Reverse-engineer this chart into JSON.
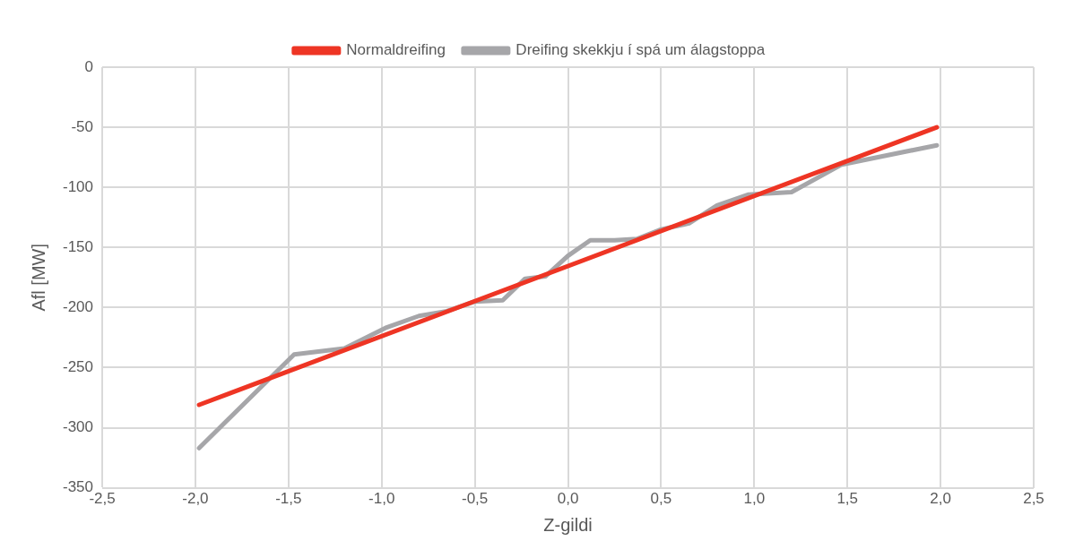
{
  "chart_data": {
    "type": "line",
    "xlabel": "Z-gildi",
    "ylabel": "Afl [MW]",
    "xlim": [
      -2.5,
      2.5
    ],
    "xticks": [
      {
        "value": -2.5,
        "label": "-2,5"
      },
      {
        "value": -2,
        "label": "-2,0"
      },
      {
        "value": -1.5,
        "label": "-1,5"
      },
      {
        "value": -1,
        "label": "-1,0"
      },
      {
        "value": -0.5,
        "label": "-0,5"
      },
      {
        "value": 0,
        "label": "0,0"
      },
      {
        "value": 0.5,
        "label": "0,5"
      },
      {
        "value": 1,
        "label": "1,0"
      },
      {
        "value": 1.5,
        "label": "1,5"
      },
      {
        "value": 2,
        "label": "2,0"
      },
      {
        "value": 2.5,
        "label": "2,5"
      }
    ],
    "ylim": [
      -350,
      0
    ],
    "yticks": [
      -350,
      -300,
      -250,
      -200,
      -150,
      -100,
      -50,
      0
    ],
    "grid": true,
    "legend": "top",
    "marker": "none",
    "series": [
      {
        "name": "Normaldreifing",
        "color": "#ee3524",
        "x": [
          -1.98,
          1.98
        ],
        "values": [
          -281,
          -50
        ]
      },
      {
        "name": "Dreifing skekkju í spá um álagstoppa",
        "color": "#a6a6a9",
        "x": [
          -1.98,
          -1.47,
          -1.2,
          -0.98,
          -0.8,
          -0.65,
          -0.5,
          -0.35,
          -0.23,
          -0.12,
          0,
          0.12,
          0.25,
          0.37,
          0.5,
          0.65,
          0.8,
          0.97,
          1.2,
          1.47,
          1.98
        ],
        "values": [
          -317,
          -239,
          -234,
          -217,
          -207,
          -203,
          -195,
          -194,
          -176,
          -174,
          -157,
          -144,
          -144,
          -143,
          -135,
          -130,
          -115,
          -106,
          -104,
          -81,
          -65
        ]
      }
    ]
  }
}
